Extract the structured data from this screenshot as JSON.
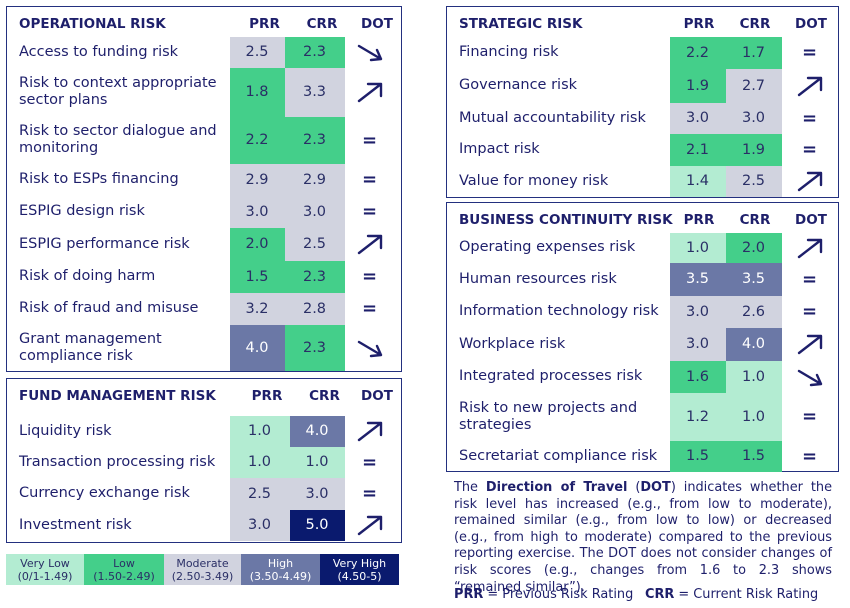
{
  "colors": {
    "very_low": "#b3ecd2",
    "low": "#44cf8a",
    "moderate": "#d1d3df",
    "high": "#6b78a6",
    "very_high": "#0a1a6e",
    "text": "#1e1f6b",
    "border": "#23307f"
  },
  "panels": [
    {
      "title": "OPERATIONAL RISK",
      "col_prr": "PRR",
      "col_crr": "CRR",
      "col_dot": "DOT",
      "rows": [
        {
          "label": "Access to funding risk",
          "prr": "2.5",
          "prr_level": "moderate",
          "crr": "2.3",
          "crr_level": "low",
          "dot": "down-arrow-icon"
        },
        {
          "label": "Risk to context appropriate sector plans",
          "prr": "1.8",
          "prr_level": "low",
          "crr": "3.3",
          "crr_level": "moderate",
          "dot": "up-arrow-icon"
        },
        {
          "label": "Risk to sector dialogue and monitoring",
          "prr": "2.2",
          "prr_level": "low",
          "crr": "2.3",
          "crr_level": "low",
          "dot": "equal-icon"
        },
        {
          "label": "Risk to ESPs financing",
          "prr": "2.9",
          "prr_level": "moderate",
          "crr": "2.9",
          "crr_level": "moderate",
          "dot": "equal-icon"
        },
        {
          "label": "ESPIG design risk",
          "prr": "3.0",
          "prr_level": "moderate",
          "crr": "3.0",
          "crr_level": "moderate",
          "dot": "equal-icon"
        },
        {
          "label": "ESPIG performance risk",
          "prr": "2.0",
          "prr_level": "low",
          "crr": "2.5",
          "crr_level": "moderate",
          "dot": "up-arrow-icon"
        },
        {
          "label": "Risk of doing harm",
          "prr": "1.5",
          "prr_level": "low",
          "crr": "2.3",
          "crr_level": "low",
          "dot": "equal-icon"
        },
        {
          "label": "Risk of fraud and misuse",
          "prr": "3.2",
          "prr_level": "moderate",
          "crr": "2.8",
          "crr_level": "moderate",
          "dot": "equal-icon"
        },
        {
          "label": "Grant management compliance risk",
          "prr": "4.0",
          "prr_level": "high",
          "crr": "2.3",
          "crr_level": "low",
          "dot": "down-arrow-icon"
        }
      ]
    },
    {
      "title": "FUND MANAGEMENT RISK",
      "col_prr": "PRR",
      "col_crr": "CRR",
      "col_dot": "DOT",
      "rows": [
        {
          "label": "Liquidity risk",
          "prr": "1.0",
          "prr_level": "very_low",
          "crr": "4.0",
          "crr_level": "high",
          "dot": "up-arrow-icon"
        },
        {
          "label": "Transaction processing risk",
          "prr": "1.0",
          "prr_level": "very_low",
          "crr": "1.0",
          "crr_level": "very_low",
          "dot": "equal-icon"
        },
        {
          "label": "Currency exchange risk",
          "prr": "2.5",
          "prr_level": "moderate",
          "crr": "3.0",
          "crr_level": "moderate",
          "dot": "equal-icon"
        },
        {
          "label": "Investment risk",
          "prr": "3.0",
          "prr_level": "moderate",
          "crr": "5.0",
          "crr_level": "very_high",
          "dot": "up-arrow-icon"
        }
      ]
    },
    {
      "title": "STRATEGIC RISK",
      "col_prr": "PRR",
      "col_crr": "CRR",
      "col_dot": "DOT",
      "rows": [
        {
          "label": "Financing risk",
          "prr": "2.2",
          "prr_level": "low",
          "crr": "1.7",
          "crr_level": "low",
          "dot": "equal-icon"
        },
        {
          "label": "Governance risk",
          "prr": "1.9",
          "prr_level": "low",
          "crr": "2.7",
          "crr_level": "moderate",
          "dot": "up-arrow-icon"
        },
        {
          "label": "Mutual accountability risk",
          "prr": "3.0",
          "prr_level": "moderate",
          "crr": "3.0",
          "crr_level": "moderate",
          "dot": "equal-icon"
        },
        {
          "label": "Impact risk",
          "prr": "2.1",
          "prr_level": "low",
          "crr": "1.9",
          "crr_level": "low",
          "dot": "equal-icon"
        },
        {
          "label": "Value for money risk",
          "prr": "1.4",
          "prr_level": "very_low",
          "crr": "2.5",
          "crr_level": "moderate",
          "dot": "up-arrow-icon"
        }
      ]
    },
    {
      "title": "BUSINESS CONTINUITY RISK",
      "col_prr": "PRR",
      "col_crr": "CRR",
      "col_dot": "DOT",
      "rows": [
        {
          "label": "Operating expenses risk",
          "prr": "1.0",
          "prr_level": "very_low",
          "crr": "2.0",
          "crr_level": "low",
          "dot": "up-arrow-icon"
        },
        {
          "label": "Human resources risk",
          "prr": "3.5",
          "prr_level": "high",
          "crr": "3.5",
          "crr_level": "high",
          "dot": "equal-icon"
        },
        {
          "label": "Information technology risk",
          "prr": "3.0",
          "prr_level": "moderate",
          "crr": "2.6",
          "crr_level": "moderate",
          "dot": "equal-icon"
        },
        {
          "label": "Workplace risk",
          "prr": "3.0",
          "prr_level": "moderate",
          "crr": "4.0",
          "crr_level": "high",
          "dot": "up-arrow-icon"
        },
        {
          "label": "Integrated processes risk",
          "prr": "1.6",
          "prr_level": "low",
          "crr": "1.0",
          "crr_level": "very_low",
          "dot": "down-arrow-icon"
        },
        {
          "label": "Risk to new projects and strategies",
          "prr": "1.2",
          "prr_level": "very_low",
          "crr": "1.0",
          "crr_level": "very_low",
          "dot": "equal-icon"
        },
        {
          "label": "Secretariat compliance risk",
          "prr": "1.5",
          "prr_level": "low",
          "crr": "1.5",
          "crr_level": "low",
          "dot": "equal-icon"
        }
      ]
    }
  ],
  "equal_symbol": "=",
  "legend": [
    {
      "name": "Very Low",
      "range": "(0/1-1.49)",
      "level": "very_low"
    },
    {
      "name": "Low",
      "range": "(1.50-2.49)",
      "level": "low"
    },
    {
      "name": "Moderate",
      "range": "(2.50-3.49)",
      "level": "moderate"
    },
    {
      "name": "High",
      "range": "(3.50-4.49)",
      "level": "high"
    },
    {
      "name": "Very High",
      "range": "(4.50-5)",
      "level": "very_high"
    }
  ],
  "note": {
    "intro": "The ",
    "term": "Direction of Travel",
    "open_paren": " (",
    "abbr": "DOT",
    "text": ") indicates whether the risk level has increased (e.g., from low to moderate), remained similar (e.g., from low to low) or decreased (e.g., from high to moderate) compared to the previous reporting exercise. The DOT does not consider changes of risk scores (e.g., changes from 1.6 to 2.3 shows “remained similar”)."
  },
  "abbreviations": {
    "prr_abbr": "PRR",
    "prr_text": " = Previous Risk Rating",
    "crr_abbr": "CRR",
    "crr_text": " = Current Risk Rating"
  }
}
